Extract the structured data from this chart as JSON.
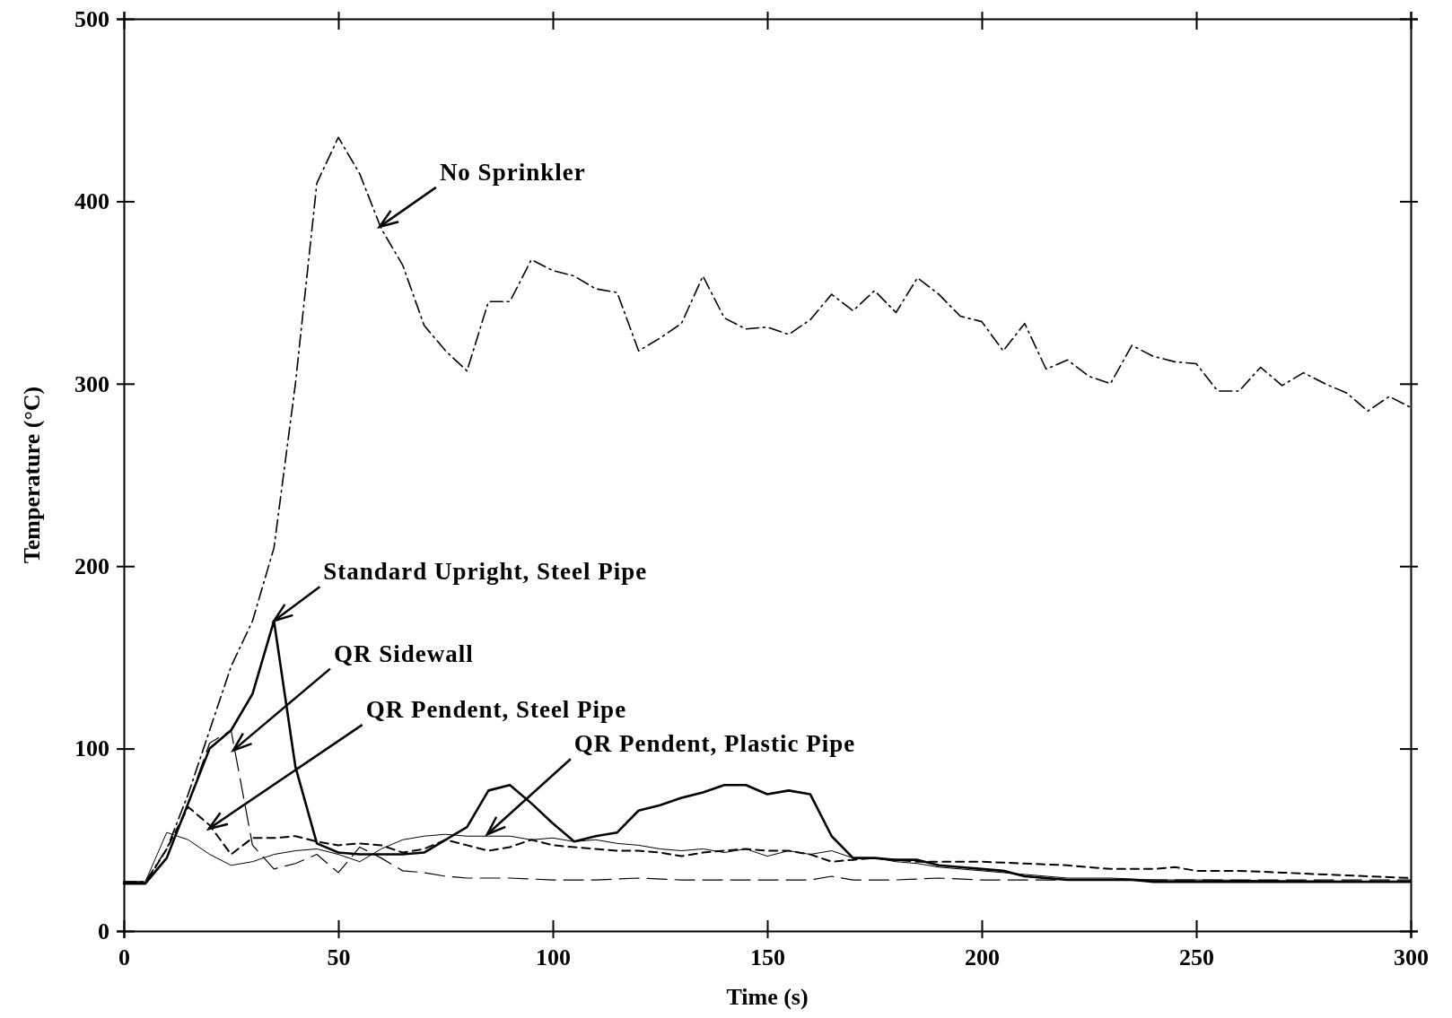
{
  "chart_data": {
    "type": "line",
    "xlabel": "Time (s)",
    "ylabel": "Temperature (°C)",
    "xlim": [
      0,
      300
    ],
    "ylim": [
      0,
      500
    ],
    "xticks": [
      0,
      50,
      100,
      150,
      200,
      250,
      300
    ],
    "yticks": [
      0,
      100,
      200,
      300,
      400,
      500
    ],
    "grid": false,
    "marker": "none",
    "series": [
      {
        "color": "#000000",
        "line_style": "dashdot",
        "x": [
          0,
          5,
          10,
          15,
          20,
          25,
          30,
          35,
          40,
          45,
          50,
          55,
          60,
          65,
          70,
          75,
          80,
          85,
          90,
          95,
          100,
          105,
          110,
          115,
          120,
          125,
          130,
          135,
          140,
          145,
          150,
          155,
          160,
          165,
          170,
          175,
          180,
          185,
          190,
          195,
          200,
          205,
          210,
          215,
          220,
          225,
          230,
          235,
          240,
          245,
          250,
          255,
          260,
          265,
          270,
          275,
          280,
          285,
          290,
          295,
          300
        ],
        "values": [
          27,
          27,
          45,
          75,
          110,
          145,
          170,
          210,
          300,
          410,
          435,
          415,
          385,
          365,
          332,
          318,
          307,
          345,
          345,
          368,
          362,
          359,
          352,
          350,
          318,
          325,
          333,
          359,
          336,
          330,
          331,
          327,
          335,
          349,
          340,
          351,
          339,
          358,
          349,
          337,
          334,
          318,
          333,
          308,
          313,
          304,
          300,
          321,
          315,
          312,
          311,
          296,
          296,
          309,
          299,
          306,
          300,
          295,
          285,
          293,
          287
        ]
      },
      {
        "color": "#000000",
        "line_style": "solid",
        "x": [
          0,
          5,
          10,
          15,
          20,
          25,
          30,
          35,
          40,
          45,
          50,
          55,
          60,
          65,
          70,
          75,
          80,
          85,
          90,
          95,
          100,
          105,
          110,
          115,
          120,
          125,
          130,
          135,
          140,
          145,
          150,
          155,
          160,
          165,
          170,
          175,
          180,
          185,
          190,
          195,
          200,
          205,
          210,
          215,
          220,
          225,
          230,
          235,
          240,
          250,
          300
        ],
        "values": [
          26,
          26,
          40,
          70,
          100,
          110,
          130,
          170,
          90,
          48,
          43,
          42,
          42,
          42,
          43,
          50,
          57,
          77,
          80,
          70,
          59,
          49,
          52,
          54,
          66,
          69,
          73,
          76,
          80,
          80,
          75,
          77,
          75,
          52,
          40,
          40,
          39,
          39,
          36,
          35,
          34,
          33,
          30,
          29,
          28,
          28,
          28,
          28,
          27,
          27,
          27
        ]
      },
      {
        "color": "#000000",
        "line_style": "longdash",
        "x": [
          0,
          5,
          10,
          15,
          20,
          25,
          30,
          35,
          40,
          45,
          50,
          55,
          60,
          65,
          70,
          75,
          80,
          90,
          100,
          110,
          120,
          130,
          140,
          150,
          160,
          165,
          170,
          180,
          190,
          200,
          220,
          240,
          260,
          280,
          300
        ],
        "values": [
          27,
          27,
          40,
          70,
          103,
          110,
          47,
          34,
          37,
          42,
          32,
          46,
          40,
          33,
          32,
          30,
          29,
          29,
          28,
          28,
          29,
          28,
          28,
          28,
          28,
          30,
          28,
          28,
          29,
          28,
          28,
          28,
          28,
          28,
          28
        ]
      },
      {
        "color": "#000000",
        "line_style": "dashed",
        "x": [
          0,
          5,
          10,
          15,
          20,
          25,
          30,
          35,
          40,
          45,
          50,
          55,
          60,
          65,
          70,
          75,
          80,
          85,
          90,
          95,
          100,
          105,
          110,
          115,
          120,
          125,
          130,
          135,
          140,
          145,
          150,
          155,
          160,
          165,
          170,
          175,
          180,
          185,
          190,
          195,
          200,
          210,
          220,
          230,
          240,
          245,
          250,
          260,
          270,
          280,
          290,
          300
        ],
        "values": [
          26,
          26,
          45,
          68,
          58,
          42,
          51,
          51,
          52,
          49,
          47,
          48,
          47,
          43,
          45,
          50,
          47,
          44,
          46,
          50,
          47,
          46,
          45,
          44,
          44,
          43,
          41,
          43,
          44,
          45,
          44,
          44,
          42,
          38,
          39,
          40,
          39,
          38,
          38,
          38,
          38,
          37,
          36,
          34,
          34,
          35,
          33,
          33,
          32,
          31,
          30,
          29
        ]
      },
      {
        "color": "#000000",
        "line_style": "solid",
        "x": [
          0,
          5,
          10,
          15,
          20,
          25,
          30,
          35,
          40,
          45,
          50,
          55,
          60,
          65,
          70,
          75,
          80,
          85,
          90,
          95,
          100,
          105,
          110,
          115,
          120,
          125,
          130,
          135,
          140,
          145,
          150,
          155,
          160,
          165,
          170,
          175,
          180,
          185,
          190,
          200,
          210,
          220,
          230,
          240,
          250,
          300
        ],
        "values": [
          27,
          27,
          54,
          50,
          42,
          36,
          38,
          42,
          44,
          45,
          42,
          38,
          45,
          50,
          52,
          53,
          52,
          52,
          52,
          50,
          51,
          49,
          50,
          48,
          47,
          45,
          44,
          45,
          43,
          45,
          41,
          44,
          42,
          44,
          40,
          40,
          38,
          37,
          35,
          33,
          31,
          29,
          29,
          28,
          28,
          27
        ]
      }
    ],
    "annotations": [
      {
        "text": "No Sprinkler",
        "x": 59.6,
        "y": 386
      },
      {
        "text": "Standard Upright, Steel Pipe",
        "x": 35,
        "y": 170
      },
      {
        "text": "QR Sidewall",
        "x": 25.5,
        "y": 99
      },
      {
        "text": "QR Pendent, Steel Pipe",
        "x": 19.8,
        "y": 56
      },
      {
        "text": "QR Pendent, Plastic Pipe",
        "x": 84.7,
        "y": 53
      }
    ]
  }
}
